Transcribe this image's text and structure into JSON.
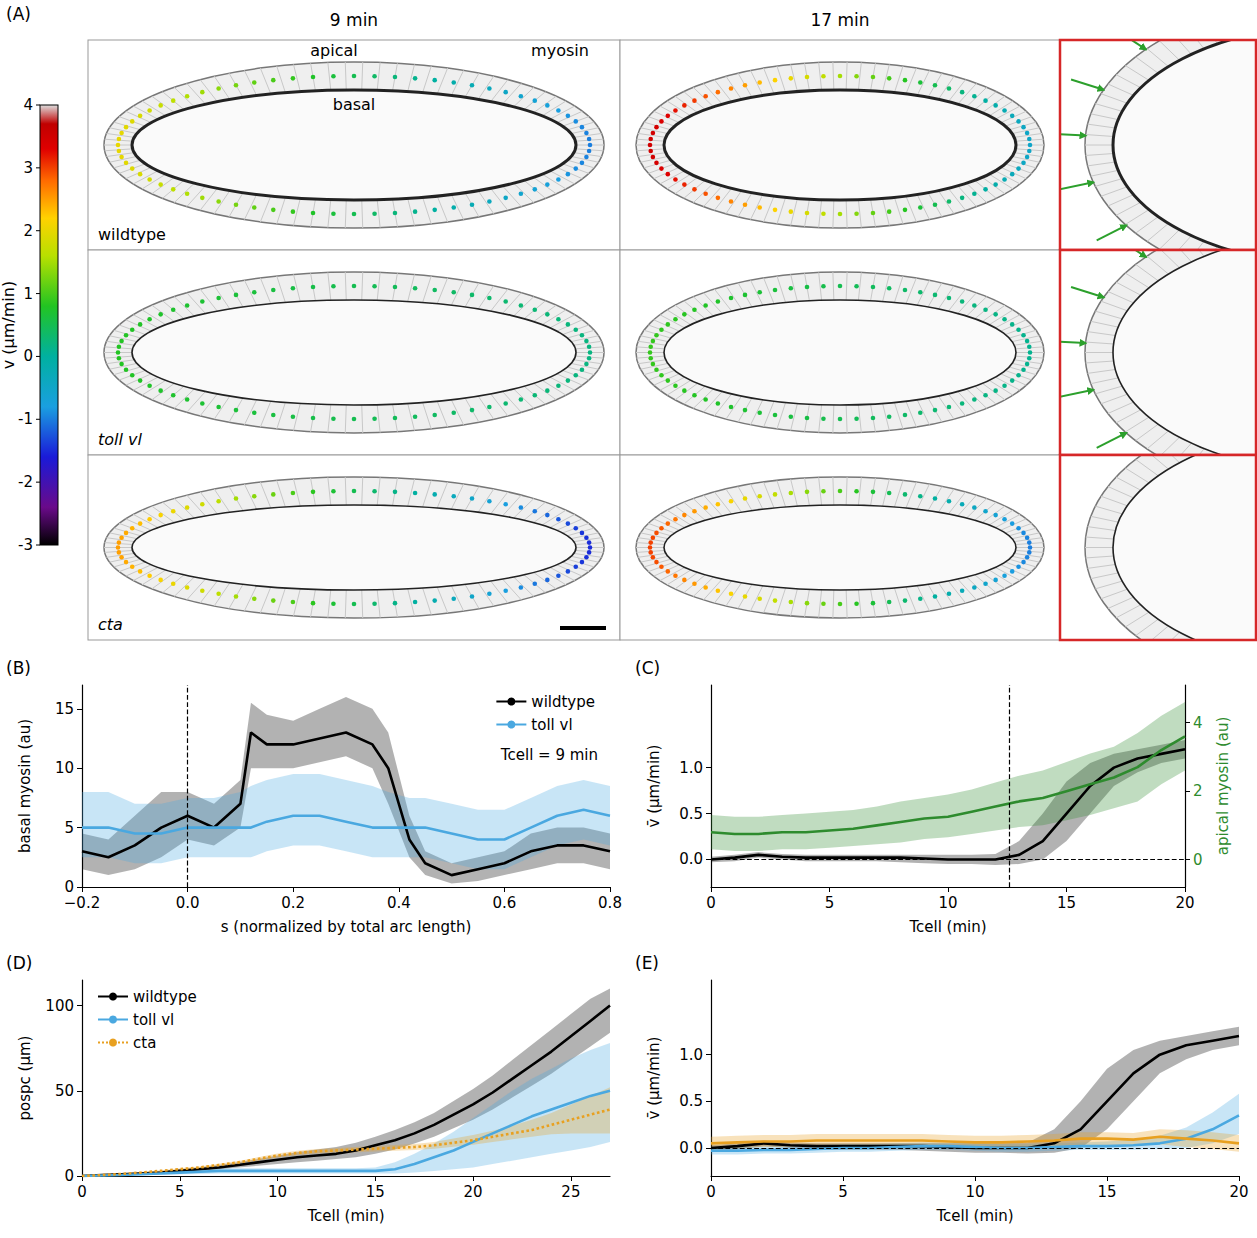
{
  "panel_a": {
    "panel": "(A)",
    "columns": [
      "9 min",
      "17 min"
    ],
    "rows": [
      "wildtype",
      "toll vl",
      "cta"
    ],
    "labels": [
      "apical",
      "myosin",
      "basal"
    ],
    "colorbar": {
      "label": "v (µm/min)",
      "range": [
        -3,
        4
      ],
      "ticks": [
        4,
        3,
        2,
        1,
        0,
        -1,
        -2,
        -3
      ]
    }
  },
  "chart_data": [
    {
      "type": "line",
      "panel": "(B)",
      "x_label": "s (normalized by total arc length)",
      "y_label": "basal myosin (au)",
      "xlim": [
        -0.2,
        0.8
      ],
      "xticks": [
        {
          "value": -0.2,
          "label": "−0.2"
        },
        {
          "value": 0,
          "label": "0.0"
        },
        0.2,
        0.4,
        0.6,
        0.8
      ],
      "ylim": [
        0,
        17
      ],
      "yticks": [
        0,
        5,
        10,
        15
      ],
      "legend": "upper right",
      "annotation": "Tcell = 9 min",
      "vertical_lines": [
        0
      ],
      "horizontal_lines": [
        0
      ],
      "x": [
        -0.2,
        -0.15,
        -0.1,
        -0.05,
        0,
        0.05,
        0.1,
        0.12,
        0.15,
        0.2,
        0.25,
        0.3,
        0.35,
        0.38,
        0.42,
        0.45,
        0.5,
        0.55,
        0.6,
        0.65,
        0.7,
        0.75,
        0.8
      ],
      "series": [
        {
          "name": "wildtype",
          "color": "#000000",
          "values": [
            3,
            2.5,
            3.5,
            5,
            6,
            5,
            7,
            13,
            12,
            12,
            12.5,
            13,
            12,
            10,
            4,
            2,
            1,
            1.5,
            2,
            3,
            3.5,
            3.5,
            3
          ],
          "lower": [
            1.5,
            1,
            1.5,
            2.5,
            4,
            3.5,
            5,
            10,
            10,
            10,
            10.5,
            11,
            10,
            7,
            2.5,
            1,
            0.3,
            0.5,
            1,
            1.5,
            2,
            2,
            1.5
          ],
          "upper": [
            4.5,
            4,
            6,
            8,
            8,
            7,
            9,
            15.5,
            14.5,
            14,
            15,
            16,
            15,
            13,
            6,
            3,
            2,
            2.5,
            3,
            4.5,
            5,
            5,
            4.5
          ]
        },
        {
          "name": "toll vl",
          "color": "#4aa8e0",
          "values": [
            5,
            5,
            4.5,
            4.5,
            5,
            5,
            5,
            5,
            5.5,
            6,
            6,
            5.5,
            5,
            5,
            5,
            5,
            4.5,
            4,
            4,
            5,
            6,
            6.5,
            6
          ],
          "lower": [
            2.5,
            2.5,
            2,
            2,
            2.5,
            2.5,
            2.5,
            2.5,
            3,
            3.5,
            3.5,
            3,
            2.5,
            2.5,
            2.5,
            2.5,
            2,
            1.5,
            1.5,
            2.5,
            3.5,
            4,
            3.5
          ],
          "upper": [
            8,
            8,
            7,
            7,
            7.5,
            7.5,
            8,
            8.5,
            9,
            9.5,
            9.5,
            9,
            8.5,
            8,
            7.5,
            7.5,
            7,
            6.5,
            6.5,
            7.5,
            8.5,
            9,
            8.5
          ]
        }
      ]
    },
    {
      "type": "line",
      "panel": "(C)",
      "x_label": "Tcell (min)",
      "y_label": "v̄ (µm/min)",
      "y2_label": "apical myosin (au)",
      "xlim": [
        0,
        20
      ],
      "xticks": [
        0,
        5,
        10,
        15,
        20
      ],
      "ylim": [
        -0.3,
        1.9
      ],
      "yticks": [
        {
          "value": 0,
          "label": "0.0"
        },
        0.5,
        {
          "value": 1,
          "label": "1.0"
        }
      ],
      "y2lim": [
        -0.8,
        5.1
      ],
      "y2ticks": [
        0,
        2,
        4
      ],
      "vertical_lines": [
        12.6
      ],
      "horizontal_lines": [
        0
      ],
      "x": [
        0,
        1,
        2,
        3,
        4,
        5,
        6,
        7,
        8,
        9,
        10,
        11,
        12,
        13,
        14,
        15,
        16,
        17,
        18,
        19,
        20
      ],
      "series": [
        {
          "color": "#000000",
          "values": [
            0,
            0.02,
            0.05,
            0.03,
            0.02,
            0.02,
            0.02,
            0.02,
            0.02,
            0.01,
            0,
            0,
            0,
            0.05,
            0.2,
            0.5,
            0.8,
            1.0,
            1.1,
            1.15,
            1.2
          ],
          "lower": [
            -0.03,
            -0.02,
            0.02,
            0,
            -0.02,
            -0.02,
            -0.02,
            -0.02,
            -0.03,
            -0.04,
            -0.05,
            -0.05,
            -0.06,
            -0.05,
            0,
            0.2,
            0.5,
            0.8,
            0.95,
            1.05,
            1.1
          ],
          "upper": [
            0.03,
            0.05,
            0.08,
            0.06,
            0.05,
            0.05,
            0.05,
            0.05,
            0.05,
            0.05,
            0.05,
            0.05,
            0.06,
            0.2,
            0.5,
            0.85,
            1.05,
            1.15,
            1.2,
            1.25,
            1.3
          ]
        },
        {
          "color": "#2e8b2e",
          "axis": "y2",
          "values": [
            0.8,
            0.75,
            0.75,
            0.8,
            0.8,
            0.85,
            0.9,
            1.0,
            1.1,
            1.2,
            1.25,
            1.4,
            1.55,
            1.7,
            1.8,
            2.0,
            2.2,
            2.4,
            2.7,
            3.2,
            3.6
          ],
          "lower": [
            0.3,
            0.25,
            0.25,
            0.3,
            0.3,
            0.35,
            0.4,
            0.45,
            0.5,
            0.6,
            0.65,
            0.75,
            0.85,
            0.95,
            1.0,
            1.15,
            1.3,
            1.5,
            1.7,
            2.2,
            2.6
          ],
          "upper": [
            1.3,
            1.25,
            1.25,
            1.3,
            1.35,
            1.4,
            1.45,
            1.55,
            1.7,
            1.8,
            1.9,
            2.05,
            2.25,
            2.45,
            2.6,
            2.85,
            3.1,
            3.3,
            3.7,
            4.2,
            4.6
          ]
        }
      ]
    },
    {
      "type": "line",
      "panel": "(D)",
      "x_label": "Tcell (min)",
      "y_label": "pospc (µm)",
      "xlim": [
        0,
        27
      ],
      "xticks": [
        0,
        5,
        10,
        15,
        20,
        25
      ],
      "ylim": [
        0,
        115
      ],
      "yticks": [
        0,
        50,
        100
      ],
      "legend": "upper left",
      "x": [
        0,
        1,
        2,
        3,
        4,
        5,
        6,
        7,
        8,
        9,
        10,
        11,
        12,
        13,
        14,
        15,
        16,
        17,
        18,
        19,
        20,
        21,
        22,
        23,
        24,
        25,
        26,
        27
      ],
      "series": [
        {
          "name": "wildtype",
          "color": "#000000",
          "values": [
            0,
            0.5,
            1,
            1.5,
            2,
            3,
            4,
            5,
            6.5,
            8,
            9.5,
            11,
            12,
            13,
            15,
            18,
            21,
            25,
            30,
            36,
            42,
            49,
            57,
            65,
            73,
            82,
            91,
            100
          ],
          "lower": [
            0,
            0.3,
            0.7,
            1,
            1.5,
            2,
            3,
            4,
            5,
            6,
            7,
            8,
            9,
            10,
            11,
            13,
            15.5,
            19,
            23,
            28,
            33,
            39,
            46,
            53,
            60,
            68,
            76,
            84
          ],
          "upper": [
            0,
            0.8,
            1.4,
            2,
            2.6,
            4,
            5,
            6.5,
            8,
            10,
            12,
            14,
            15.5,
            17,
            19.5,
            23,
            27,
            31.5,
            37,
            44,
            51,
            59,
            68,
            77,
            86,
            95,
            104,
            110
          ]
        },
        {
          "name": "toll vl",
          "color": "#4aa8e0",
          "values": [
            0,
            0.3,
            0.6,
            1,
            1.5,
            2,
            2.5,
            3,
            3,
            3,
            3,
            3,
            3,
            3,
            3,
            3,
            4,
            7,
            11,
            15,
            20,
            25,
            30,
            35,
            39,
            43,
            47,
            50
          ],
          "lower": [
            0,
            0.1,
            0.3,
            0.5,
            0.8,
            1,
            1.2,
            1.5,
            1.5,
            1.5,
            1.5,
            1.5,
            1.5,
            1.5,
            1.5,
            1.5,
            1.5,
            2,
            3,
            4,
            5,
            7,
            9,
            11,
            13,
            15,
            17,
            20
          ],
          "upper": [
            0,
            0.5,
            1,
            1.5,
            2.2,
            3,
            3.8,
            4.5,
            4.5,
            4.5,
            4.5,
            4.5,
            4.5,
            4.5,
            4.5,
            5,
            8,
            13,
            19,
            26,
            34,
            42,
            50,
            57,
            63,
            69,
            74,
            78
          ]
        },
        {
          "name": "cta",
          "color": "#e8a020",
          "line_style": "dotted",
          "values": [
            0,
            0.5,
            1.2,
            2,
            3,
            4,
            5,
            6.5,
            8,
            10,
            12,
            13.5,
            14.5,
            15,
            15.5,
            16,
            16.5,
            17,
            18,
            19.5,
            21,
            23,
            25,
            27,
            30,
            33,
            36,
            39
          ],
          "lower": [
            0,
            0.4,
            1,
            1.7,
            2.6,
            3.5,
            4.4,
            5.8,
            7.2,
            9,
            10.8,
            12.2,
            13.2,
            13.6,
            14,
            14.4,
            14.8,
            15.2,
            16,
            17.2,
            18.4,
            20,
            21.5,
            23,
            24.5,
            25,
            25,
            25
          ],
          "upper": [
            0,
            0.6,
            1.4,
            2.3,
            3.4,
            4.5,
            5.6,
            7.2,
            8.8,
            11,
            13.2,
            14.8,
            15.8,
            16.4,
            17,
            17.6,
            18.2,
            18.8,
            20,
            22,
            24,
            26.5,
            29.5,
            33,
            37,
            42,
            47,
            52
          ]
        }
      ]
    },
    {
      "type": "line",
      "panel": "(E)",
      "x_label": "Tcell (min)",
      "y_label": "v̄ (µm/min)",
      "xlim": [
        0,
        20
      ],
      "xticks": [
        0,
        5,
        10,
        15,
        20
      ],
      "ylim": [
        -0.3,
        1.8
      ],
      "yticks": [
        {
          "value": 0,
          "label": "0.0"
        },
        0.5,
        {
          "value": 1,
          "label": "1.0"
        }
      ],
      "horizontal_lines": [
        0
      ],
      "x": [
        0,
        1,
        2,
        3,
        4,
        5,
        6,
        7,
        8,
        9,
        10,
        11,
        12,
        13,
        14,
        15,
        16,
        17,
        18,
        19,
        20
      ],
      "series": [
        {
          "color": "#000000",
          "values": [
            0,
            0.02,
            0.05,
            0.03,
            0.02,
            0.02,
            0.02,
            0.02,
            0.02,
            0.01,
            0,
            0,
            0,
            0.05,
            0.2,
            0.5,
            0.8,
            1.0,
            1.1,
            1.15,
            1.2
          ],
          "lower": [
            -0.03,
            -0.02,
            0.02,
            0,
            -0.02,
            -0.02,
            -0.02,
            -0.02,
            -0.03,
            -0.04,
            -0.05,
            -0.05,
            -0.06,
            -0.05,
            0,
            0.2,
            0.5,
            0.8,
            0.95,
            1.05,
            1.1
          ],
          "upper": [
            0.03,
            0.05,
            0.08,
            0.06,
            0.05,
            0.05,
            0.05,
            0.05,
            0.05,
            0.05,
            0.05,
            0.05,
            0.06,
            0.2,
            0.5,
            0.85,
            1.05,
            1.15,
            1.2,
            1.25,
            1.3
          ]
        },
        {
          "color": "#4aa8e0",
          "values": [
            -0.03,
            -0.03,
            -0.02,
            -0.02,
            -0.01,
            0,
            0,
            0.01,
            0.02,
            0.02,
            0.01,
            0,
            0,
            0.01,
            0.02,
            0.02,
            0.03,
            0.05,
            0.1,
            0.2,
            0.35
          ],
          "lower": [
            -0.07,
            -0.07,
            -0.06,
            -0.06,
            -0.05,
            -0.04,
            -0.04,
            -0.03,
            -0.02,
            -0.02,
            -0.03,
            -0.04,
            -0.04,
            -0.03,
            -0.02,
            -0.02,
            -0.02,
            -0.01,
            0.0,
            0.05,
            0.15
          ],
          "upper": [
            0.01,
            0.01,
            0.02,
            0.02,
            0.03,
            0.04,
            0.04,
            0.05,
            0.06,
            0.06,
            0.05,
            0.04,
            0.04,
            0.05,
            0.06,
            0.07,
            0.09,
            0.13,
            0.22,
            0.38,
            0.58
          ]
        },
        {
          "color": "#e8a020",
          "values": [
            0.05,
            0.06,
            0.07,
            0.07,
            0.08,
            0.08,
            0.08,
            0.08,
            0.08,
            0.07,
            0.06,
            0.06,
            0.07,
            0.08,
            0.1,
            0.1,
            0.09,
            0.12,
            0.1,
            0.08,
            0.05
          ],
          "lower": [
            -0.01,
            0,
            0.01,
            0.01,
            0.02,
            0.02,
            0.02,
            0.02,
            0.02,
            0.01,
            0,
            0,
            0.01,
            0.02,
            0.03,
            0.03,
            0.02,
            0.04,
            0.01,
            -0.01,
            -0.04
          ],
          "upper": [
            0.12,
            0.13,
            0.14,
            0.14,
            0.15,
            0.15,
            0.15,
            0.15,
            0.15,
            0.14,
            0.13,
            0.13,
            0.14,
            0.15,
            0.17,
            0.17,
            0.16,
            0.2,
            0.19,
            0.17,
            0.14
          ]
        }
      ]
    }
  ]
}
